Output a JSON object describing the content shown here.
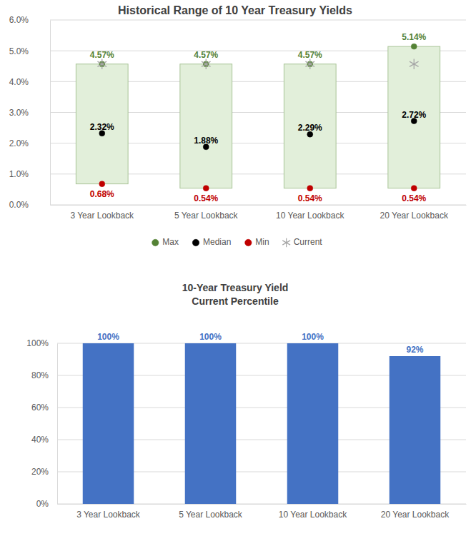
{
  "chart_data": [
    {
      "type": "range",
      "title": "Historical Range of 10 Year Treasury Yields",
      "categories": [
        "3 Year Lookback",
        "5 Year Lookback",
        "10 Year Lookback",
        "20 Year Lookback"
      ],
      "series": [
        {
          "name": "Max",
          "color": "#548235",
          "marker": "circle",
          "values": [
            4.57,
            4.57,
            4.57,
            5.14
          ],
          "value_labels": [
            "4.57%",
            "4.57%",
            "4.57%",
            "5.14%"
          ]
        },
        {
          "name": "Median",
          "color": "#000000",
          "marker": "circle",
          "values": [
            2.32,
            1.88,
            2.29,
            2.72
          ],
          "value_labels": [
            "2.32%",
            "1.88%",
            "2.29%",
            "2.72%"
          ]
        },
        {
          "name": "Min",
          "color": "#c00000",
          "marker": "circle",
          "values": [
            0.68,
            0.54,
            0.54,
            0.54
          ],
          "value_labels": [
            "0.68%",
            "0.54%",
            "0.54%",
            "0.54%"
          ]
        },
        {
          "name": "Current",
          "color": "#a6a6a6",
          "marker": "asterisk",
          "values": [
            4.57,
            4.57,
            4.57,
            4.57
          ]
        }
      ],
      "ylim": [
        0,
        6
      ],
      "yticks": [
        {
          "value": 0,
          "label": "0.0%"
        },
        {
          "value": 1,
          "label": "1.0%"
        },
        {
          "value": 2,
          "label": "2.0%"
        },
        {
          "value": 3,
          "label": "3.0%"
        },
        {
          "value": 4,
          "label": "4.0%"
        },
        {
          "value": 5,
          "label": "5.0%"
        },
        {
          "value": 6,
          "label": "6.0%"
        }
      ],
      "grid": true,
      "legend": "bottom",
      "data_labels": true
    },
    {
      "type": "bar",
      "title": "10-Year Treasury Yield",
      "subtitle": "Current Percentile",
      "categories": [
        "3 Year Lookback",
        "5 Year Lookback",
        "10 Year Lookback",
        "20 Year Lookback"
      ],
      "values": [
        100,
        100,
        100,
        92
      ],
      "value_labels": [
        "100%",
        "100%",
        "100%",
        "92%"
      ],
      "color": "#4472c4",
      "ylim": [
        0,
        100
      ],
      "yticks": [
        {
          "value": 0,
          "label": "0%"
        },
        {
          "value": 20,
          "label": "20%"
        },
        {
          "value": 40,
          "label": "40%"
        },
        {
          "value": 60,
          "label": "60%"
        },
        {
          "value": 80,
          "label": "80%"
        },
        {
          "value": 100,
          "label": "100%"
        }
      ],
      "grid": true,
      "data_labels": true
    }
  ]
}
